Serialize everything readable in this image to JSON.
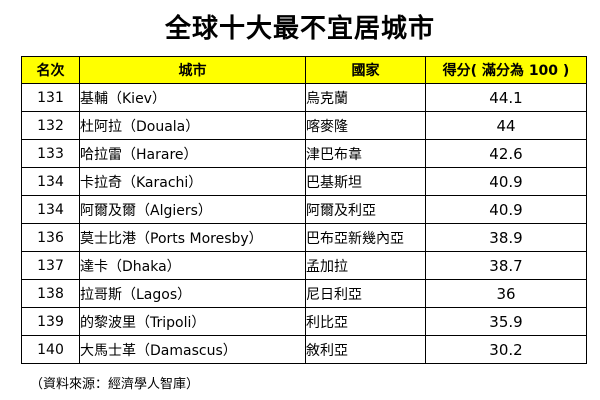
{
  "title": "全球十大最不宜居城市",
  "header_bg": "#ffff00",
  "table": {
    "headers": [
      "名次",
      "城市",
      "國家",
      "得分( 滿分為 100 )"
    ],
    "rows": [
      {
        "rank": "131",
        "city": "基輔（Kiev）",
        "country": "烏克蘭",
        "score": "44.1"
      },
      {
        "rank": "132",
        "city": "杜阿拉（Douala）",
        "country": "喀麥隆",
        "score": "44"
      },
      {
        "rank": "133",
        "city": "哈拉雷（Harare）",
        "country": "津巴布韋",
        "score": "42.6"
      },
      {
        "rank": "134",
        "city": "卡拉奇（Karachi）",
        "country": "巴基斯坦",
        "score": "40.9"
      },
      {
        "rank": "134",
        "city": "阿爾及爾（Algiers）",
        "country": "阿爾及利亞",
        "score": "40.9"
      },
      {
        "rank": "136",
        "city": "莫士比港（Ports Moresby）",
        "country": "巴布亞新幾內亞",
        "score": "38.9"
      },
      {
        "rank": "137",
        "city": "達卡（Dhaka）",
        "country": "孟加拉",
        "score": "38.7"
      },
      {
        "rank": "138",
        "city": "拉哥斯（Lagos）",
        "country": "尼日利亞",
        "score": "36"
      },
      {
        "rank": "139",
        "city": "的黎波里（Tripoli）",
        "country": "利比亞",
        "score": "35.9"
      },
      {
        "rank": "140",
        "city": "大馬士革（Damascus）",
        "country": "敘利亞",
        "score": "30.2"
      }
    ]
  },
  "source": "（資料來源：經濟學人智庫）"
}
